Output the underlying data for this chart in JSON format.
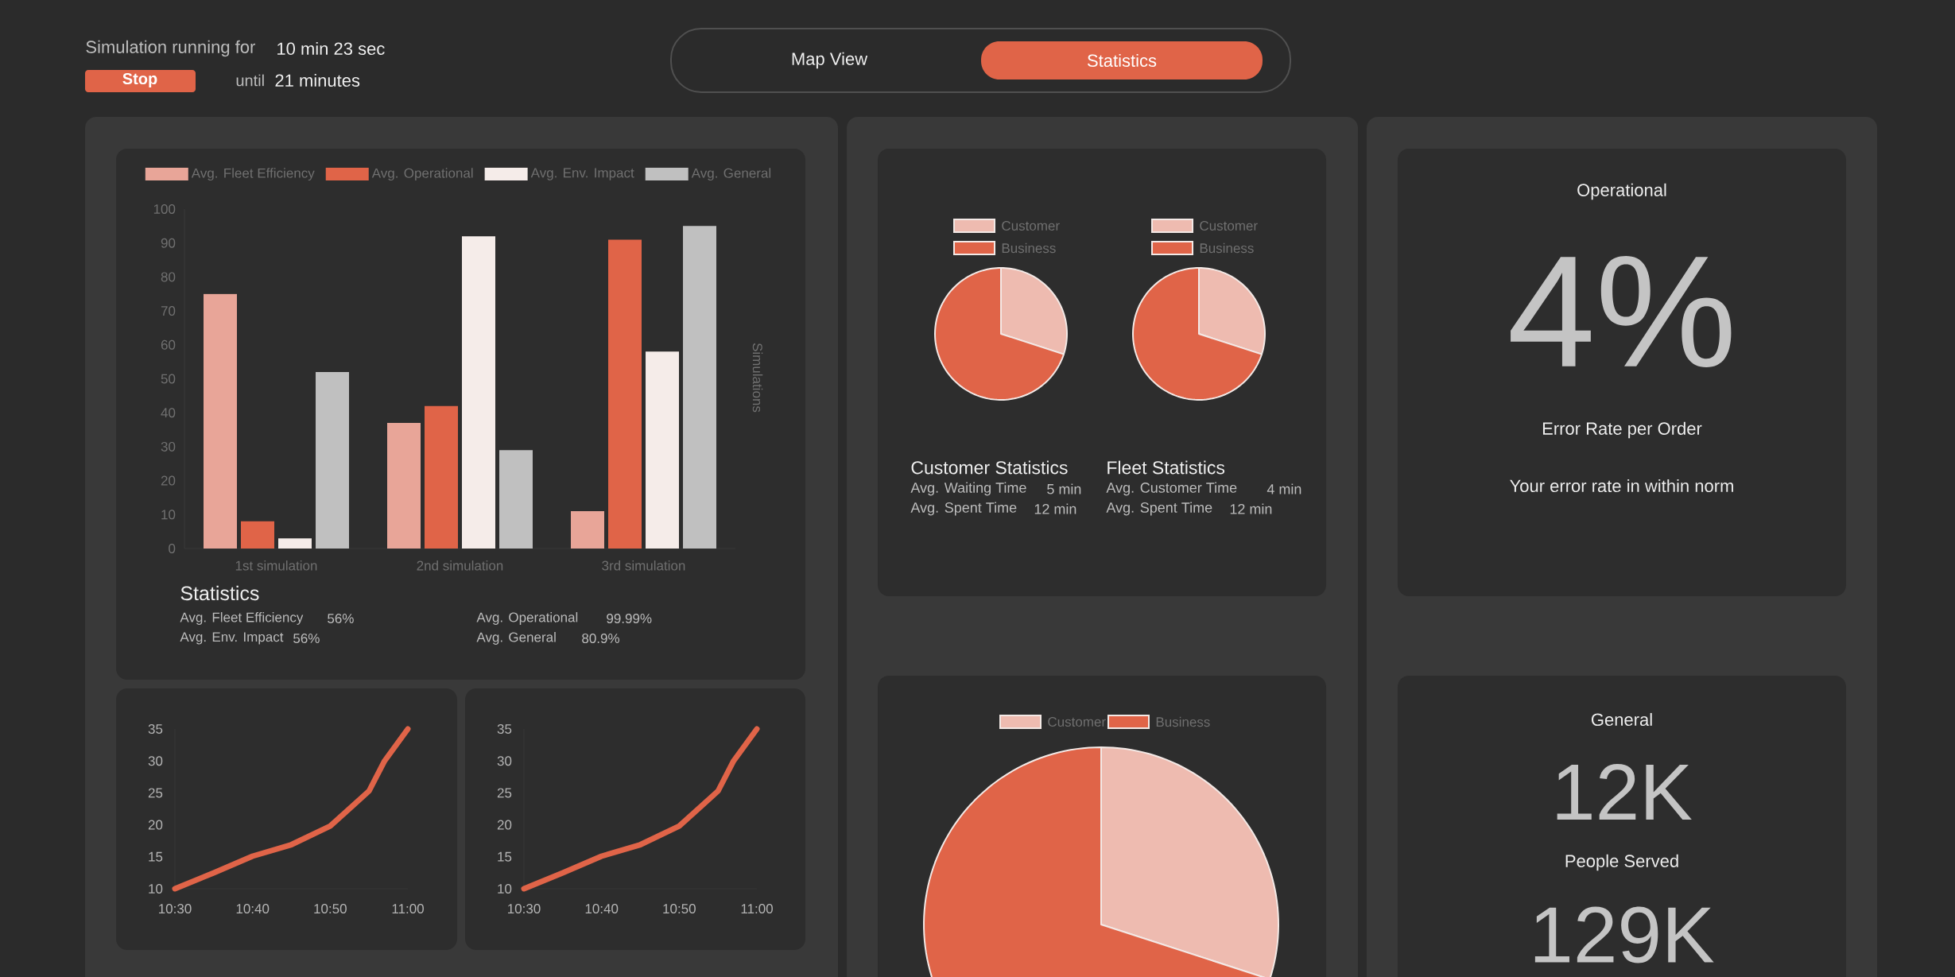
{
  "chart_data": [
    {
      "type": "other",
      "annotations": [
        "Simulation running for",
        "10 min 23 sec",
        "Stop",
        "until",
        "21 minutes",
        "Map View",
        "Statistics"
      ]
    },
    {
      "type": "bar",
      "categories": [
        "1st simulation",
        "2nd simulation",
        "3rd simulation"
      ],
      "series": [
        {
          "name": "Avg. Fleet Efficiency",
          "color": "#e8a598",
          "values": [
            75,
            37,
            11
          ]
        },
        {
          "name": "Avg. Operational",
          "color": "#e06448",
          "values": [
            8,
            42,
            91
          ]
        },
        {
          "name": "Avg. Env. Impact",
          "color": "#f5ece9",
          "values": [
            3,
            92,
            58
          ]
        },
        {
          "name": "Avg. General",
          "color": "#c0c0c0",
          "values": [
            52,
            29,
            95
          ]
        }
      ],
      "ylim": [
        0,
        100
      ],
      "yticks": [
        0,
        10,
        20,
        30,
        40,
        50,
        60,
        70,
        80,
        90,
        100
      ],
      "ylabel": "Simulations",
      "legend": "top",
      "annotations": [
        "Statistics",
        "Avg. Fleet Efficiency",
        "56%",
        "Avg. Operational",
        "99.99%",
        "Avg. Env. Impact",
        "56%",
        "Avg. General",
        "80.9%"
      ]
    },
    {
      "type": "pie",
      "categories": [
        "Customer",
        "Business"
      ],
      "values": [
        30,
        70
      ],
      "colors": [
        "#eebbb0",
        "#e06448"
      ],
      "legend": "top",
      "annotations": [
        "Customer Statistics",
        "Avg. Waiting Time",
        "5 min",
        "Avg. Spent Time",
        "12 min"
      ]
    },
    {
      "type": "pie",
      "categories": [
        "Customer",
        "Business"
      ],
      "values": [
        30,
        70
      ],
      "colors": [
        "#eebbb0",
        "#e06448"
      ],
      "legend": "top",
      "annotations": [
        "Fleet Statistics",
        "Avg. Customer Time",
        "4 min",
        "Avg. Spent Time",
        "12 min"
      ]
    },
    {
      "type": "line",
      "x": [
        10.5,
        10.5833,
        10.6667,
        10.75,
        10.8333,
        10.9167,
        10.95,
        11
      ],
      "values": [
        10,
        12.5,
        15.1,
        16.9,
        19.8,
        25.3,
        30,
        35
      ],
      "color": "#e06448",
      "marker": "none",
      "xlim": [
        10.5,
        11
      ],
      "xticks": [
        {
          "value": 10.5,
          "label": "10:30"
        },
        {
          "value": 10.6667,
          "label": "10:40"
        },
        {
          "value": 10.8333,
          "label": "10:50"
        },
        {
          "value": 11,
          "label": "11:00"
        }
      ],
      "ylim": [
        10,
        35
      ],
      "yticks": [
        10,
        15,
        20,
        25,
        30,
        35
      ]
    },
    {
      "type": "line",
      "x": [
        10.5,
        10.5833,
        10.6667,
        10.75,
        10.8333,
        10.9167,
        10.95,
        11
      ],
      "values": [
        10,
        12.5,
        15.1,
        16.9,
        19.8,
        25.3,
        30,
        35
      ],
      "color": "#e06448",
      "marker": "none",
      "xlim": [
        10.5,
        11
      ],
      "xticks": [
        {
          "value": 10.5,
          "label": "10:30"
        },
        {
          "value": 10.6667,
          "label": "10:40"
        },
        {
          "value": 10.8333,
          "label": "10:50"
        },
        {
          "value": 11,
          "label": "11:00"
        }
      ],
      "ylim": [
        10,
        35
      ],
      "yticks": [
        10,
        15,
        20,
        25,
        30,
        35
      ]
    },
    {
      "type": "pie",
      "categories": [
        "Customer",
        "Business"
      ],
      "values": [
        30,
        70
      ],
      "colors": [
        "#eebbb0",
        "#e06448"
      ],
      "legend": "top"
    },
    {
      "type": "other",
      "annotations": [
        "Operational",
        "4%",
        "Error Rate per Order",
        "Your error rate in within norm"
      ]
    },
    {
      "type": "other",
      "annotations": [
        "General",
        "12K",
        "People Served",
        "129K"
      ]
    }
  ]
}
